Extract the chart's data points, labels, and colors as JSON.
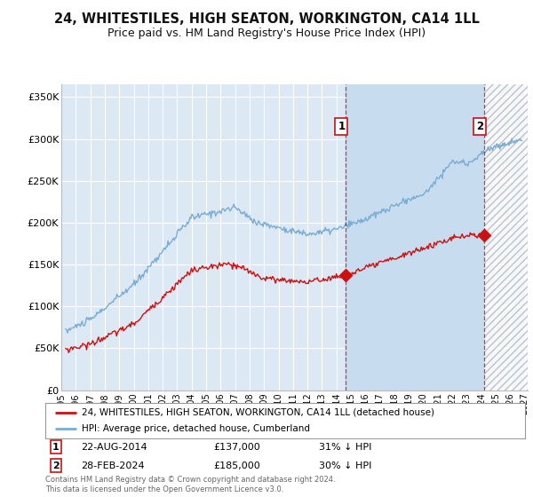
{
  "title": "24, WHITESTILES, HIGH SEATON, WORKINGTON, CA14 1LL",
  "subtitle": "Price paid vs. HM Land Registry's House Price Index (HPI)",
  "title_fontsize": 10.5,
  "subtitle_fontsize": 9,
  "ylabel_ticks": [
    "£0",
    "£50K",
    "£100K",
    "£150K",
    "£200K",
    "£250K",
    "£300K",
    "£350K"
  ],
  "ylabel_values": [
    0,
    50000,
    100000,
    150000,
    200000,
    250000,
    300000,
    350000
  ],
  "ylim": [
    0,
    365000
  ],
  "xlim_start": 1995.3,
  "xlim_end": 2027.2,
  "background_color": "#ffffff",
  "plot_bg_color": "#dde8f5",
  "grid_color": "#ffffff",
  "hpi_color": "#7aadd4",
  "price_color": "#cc1111",
  "shade_color": "#c8dcf0",
  "marker1_date": 2014.64,
  "marker1_price": 137000,
  "marker1_label": "1",
  "marker2_date": 2024.17,
  "marker2_price": 185000,
  "marker2_label": "2",
  "legend_line1": "24, WHITESTILES, HIGH SEATON, WORKINGTON, CA14 1LL (detached house)",
  "legend_line2": "HPI: Average price, detached house, Cumberland",
  "footer": "Contains HM Land Registry data © Crown copyright and database right 2024.\nThis data is licensed under the Open Government Licence v3.0.",
  "xtick_years": [
    1995,
    1996,
    1997,
    1998,
    1999,
    2000,
    2001,
    2002,
    2003,
    2004,
    2005,
    2006,
    2007,
    2008,
    2009,
    2010,
    2011,
    2012,
    2013,
    2014,
    2015,
    2016,
    2017,
    2018,
    2019,
    2020,
    2021,
    2022,
    2023,
    2024,
    2025,
    2026,
    2027
  ]
}
